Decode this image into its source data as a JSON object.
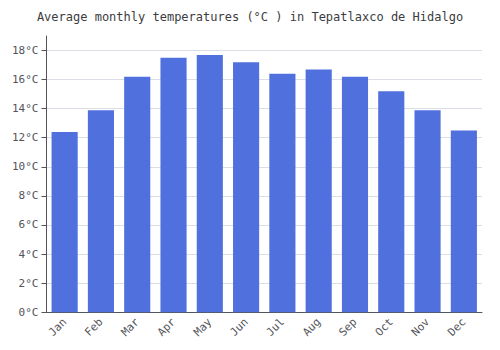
{
  "chart_data": {
    "type": "bar",
    "title": "Average monthly temperatures (°C ) in Tepatlaxco de Hidalgo",
    "categories": [
      "Jan",
      "Feb",
      "Mar",
      "Apr",
      "May",
      "Jun",
      "Jul",
      "Aug",
      "Sep",
      "Oct",
      "Nov",
      "Dec"
    ],
    "values": [
      12.4,
      13.9,
      16.2,
      17.5,
      17.7,
      17.2,
      16.4,
      16.7,
      16.2,
      15.2,
      13.9,
      12.5
    ],
    "ylim": [
      0,
      19
    ],
    "yticks": [
      {
        "value": 0,
        "label": "0°C"
      },
      {
        "value": 2,
        "label": "2°C"
      },
      {
        "value": 4,
        "label": "4°C"
      },
      {
        "value": 6,
        "label": "6°C"
      },
      {
        "value": 8,
        "label": "8°C"
      },
      {
        "value": 10,
        "label": "10°C"
      },
      {
        "value": 12,
        "label": "12°C"
      },
      {
        "value": 14,
        "label": "14°C"
      },
      {
        "value": 16,
        "label": "16°C"
      },
      {
        "value": 18,
        "label": "18°C"
      }
    ],
    "grid": true
  }
}
